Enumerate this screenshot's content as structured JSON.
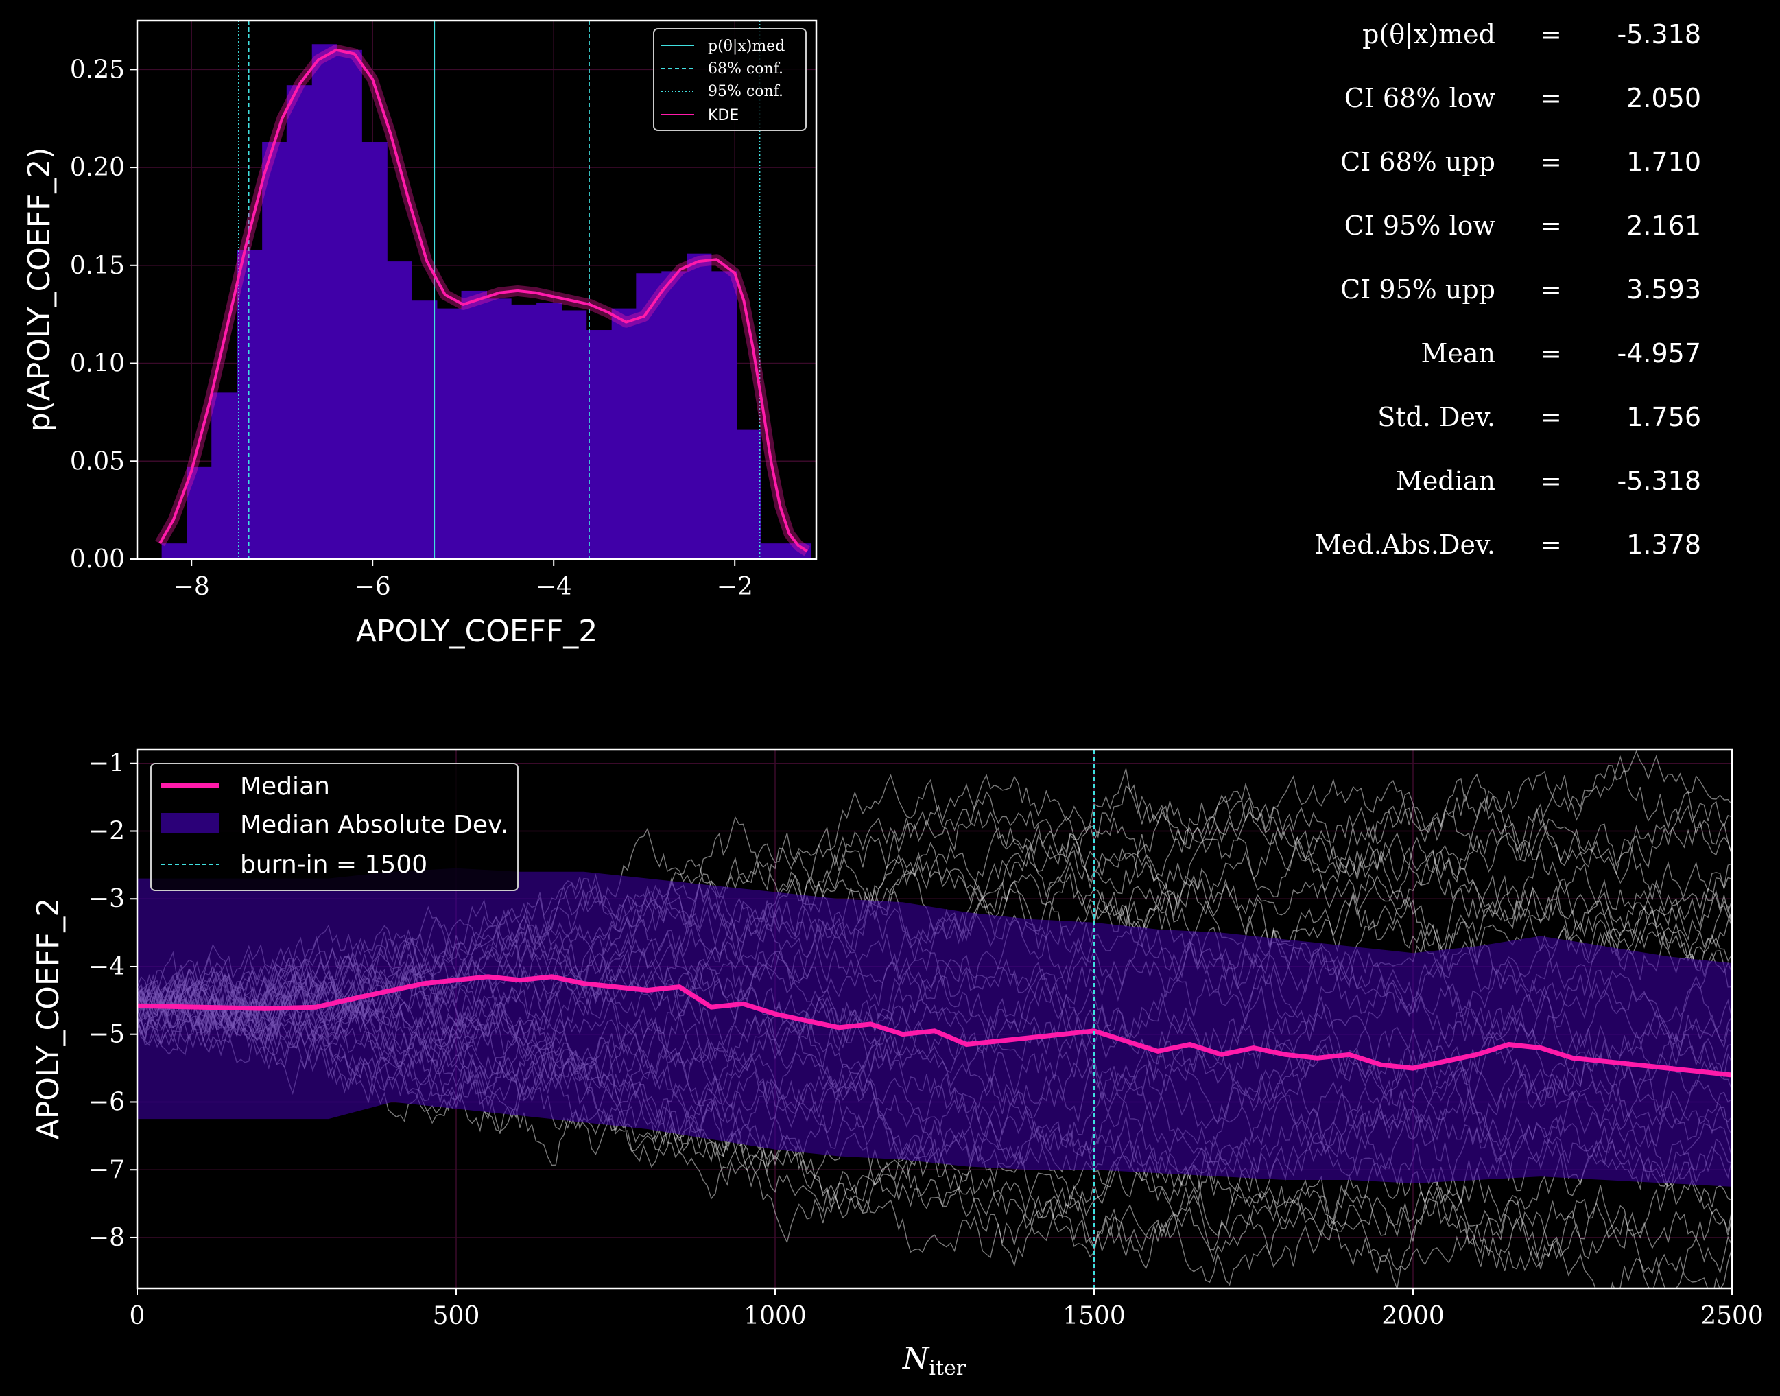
{
  "stats": [
    {
      "label": "p(θ|x)med",
      "eq": "=",
      "value": "-5.318"
    },
    {
      "label": "CI 68% low",
      "eq": "=",
      "value": "2.050"
    },
    {
      "label": "CI 68% upp",
      "eq": "=",
      "value": "1.710"
    },
    {
      "label": "CI 95% low",
      "eq": "=",
      "value": "2.161"
    },
    {
      "label": "CI 95% upp",
      "eq": "=",
      "value": "3.593"
    },
    {
      "label": "Mean",
      "eq": "=",
      "value": "-4.957"
    },
    {
      "label": "Std. Dev.",
      "eq": "=",
      "value": "1.756"
    },
    {
      "label": "Median",
      "eq": "=",
      "value": "-5.318"
    },
    {
      "label": "Med.Abs.Dev.",
      "eq": "=",
      "value": "1.378"
    }
  ],
  "chart_data": [
    {
      "type": "bar",
      "xlabel": "APOLY_COEFF_2",
      "ylabel": "p(APOLY_COEFF_2)",
      "xlim": [
        -8.6,
        -1.1
      ],
      "ylim": [
        0,
        0.275
      ],
      "xticks": [
        "−8",
        "−6",
        "−4",
        "−2"
      ],
      "xtick_values": [
        -8,
        -6,
        -4,
        -2
      ],
      "yticks": [
        "0.00",
        "0.05",
        "0.10",
        "0.15",
        "0.20",
        "0.25"
      ],
      "ytick_values": [
        0,
        0.05,
        0.1,
        0.15,
        0.2,
        0.25
      ],
      "histogram": {
        "bin_edges": [
          -8.33,
          -8.05,
          -7.78,
          -7.5,
          -7.22,
          -6.95,
          -6.67,
          -6.4,
          -6.12,
          -5.84,
          -5.57,
          -5.29,
          -5.02,
          -4.74,
          -4.47,
          -4.19,
          -3.91,
          -3.64,
          -3.36,
          -3.09,
          -2.81,
          -2.53,
          -2.26,
          -1.98,
          -1.71,
          -1.43,
          -1.16
        ],
        "values": [
          0.008,
          0.047,
          0.085,
          0.158,
          0.213,
          0.242,
          0.263,
          0.26,
          0.213,
          0.152,
          0.132,
          0.128,
          0.137,
          0.133,
          0.13,
          0.131,
          0.127,
          0.117,
          0.128,
          0.146,
          0.147,
          0.156,
          0.147,
          0.066,
          0.008,
          0.008
        ],
        "color": "#4000a8"
      },
      "kde": {
        "name": "KDE",
        "color": "#ff1aaa",
        "x": [
          -8.35,
          -8.2,
          -8.0,
          -7.8,
          -7.6,
          -7.4,
          -7.2,
          -7.0,
          -6.8,
          -6.6,
          -6.4,
          -6.2,
          -6.0,
          -5.8,
          -5.6,
          -5.4,
          -5.2,
          -5.0,
          -4.8,
          -4.6,
          -4.4,
          -4.2,
          -4.0,
          -3.8,
          -3.6,
          -3.4,
          -3.2,
          -3.0,
          -2.8,
          -2.6,
          -2.4,
          -2.2,
          -2.0,
          -1.9,
          -1.8,
          -1.7,
          -1.6,
          -1.5,
          -1.4,
          -1.3,
          -1.2
        ],
        "y": [
          0.008,
          0.02,
          0.045,
          0.08,
          0.12,
          0.16,
          0.196,
          0.225,
          0.243,
          0.255,
          0.26,
          0.258,
          0.245,
          0.217,
          0.183,
          0.152,
          0.135,
          0.13,
          0.133,
          0.136,
          0.137,
          0.136,
          0.134,
          0.132,
          0.13,
          0.126,
          0.121,
          0.124,
          0.137,
          0.148,
          0.152,
          0.153,
          0.146,
          0.132,
          0.108,
          0.08,
          0.05,
          0.027,
          0.013,
          0.007,
          0.004
        ]
      },
      "vlines": [
        {
          "name": "p(θ|x)med",
          "x": -5.318,
          "style": "solid",
          "color": "#40e0e0"
        },
        {
          "name": "68% conf.",
          "x": [
            -7.368,
            -3.608
          ],
          "style": "dashed",
          "color": "#40e0e0"
        },
        {
          "name": "95% conf.",
          "x": [
            -7.479,
            -1.725
          ],
          "style": "dotted",
          "color": "#40e0e0"
        }
      ],
      "legend": {
        "position": "upper right",
        "entries": [
          "p(θ|x)med",
          "68% conf.",
          "95% conf.",
          "KDE"
        ]
      }
    },
    {
      "type": "line",
      "xlabel": "N_iter",
      "ylabel": "APOLY_COEFF_2",
      "xlim": [
        0,
        2500
      ],
      "ylim": [
        -8.75,
        -0.8
      ],
      "xticks": [
        "0",
        "500",
        "1000",
        "1500",
        "2000",
        "2500"
      ],
      "xtick_values": [
        0,
        500,
        1000,
        1500,
        2000,
        2500
      ],
      "yticks": [
        "−1",
        "−2",
        "−3",
        "−4",
        "−5",
        "−6",
        "−7",
        "−8"
      ],
      "ytick_values": [
        -1,
        -2,
        -3,
        -4,
        -5,
        -6,
        -7,
        -8
      ],
      "series": [
        {
          "name": "Median",
          "color": "#ff1aaa",
          "x": [
            0,
            100,
            200,
            280,
            350,
            400,
            450,
            500,
            550,
            600,
            650,
            700,
            750,
            800,
            850,
            900,
            950,
            1000,
            1050,
            1100,
            1150,
            1200,
            1250,
            1300,
            1350,
            1400,
            1450,
            1500,
            1550,
            1600,
            1650,
            1700,
            1750,
            1800,
            1850,
            1900,
            1950,
            2000,
            2050,
            2100,
            2150,
            2200,
            2250,
            2300,
            2350,
            2400,
            2450,
            2500
          ],
          "y": [
            -4.58,
            -4.6,
            -4.62,
            -4.6,
            -4.45,
            -4.35,
            -4.25,
            -4.2,
            -4.15,
            -4.2,
            -4.15,
            -4.25,
            -4.3,
            -4.35,
            -4.3,
            -4.6,
            -4.55,
            -4.7,
            -4.8,
            -4.9,
            -4.85,
            -5.0,
            -4.95,
            -5.15,
            -5.1,
            -5.05,
            -5.0,
            -4.95,
            -5.1,
            -5.25,
            -5.15,
            -5.3,
            -5.2,
            -5.3,
            -5.35,
            -5.3,
            -5.45,
            -5.5,
            -5.4,
            -5.3,
            -5.15,
            -5.2,
            -5.35,
            -5.4,
            -5.45,
            -5.5,
            -5.55,
            -5.6
          ]
        },
        {
          "name": "Median Absolute Dev.",
          "color": "#3a00a0",
          "x": [
            0,
            100,
            200,
            300,
            400,
            500,
            600,
            700,
            800,
            900,
            1000,
            1100,
            1200,
            1300,
            1400,
            1500,
            1600,
            1700,
            1800,
            1900,
            2000,
            2100,
            2200,
            2300,
            2400,
            2500
          ],
          "upper": [
            -2.7,
            -2.7,
            -2.7,
            -2.7,
            -2.6,
            -2.55,
            -2.6,
            -2.6,
            -2.7,
            -2.8,
            -2.9,
            -3.0,
            -3.05,
            -3.2,
            -3.3,
            -3.35,
            -3.45,
            -3.5,
            -3.6,
            -3.7,
            -3.8,
            -3.7,
            -3.55,
            -3.7,
            -3.85,
            -3.95
          ],
          "lower": [
            -6.25,
            -6.25,
            -6.25,
            -6.25,
            -6.0,
            -6.1,
            -6.2,
            -6.3,
            -6.4,
            -6.55,
            -6.7,
            -6.8,
            -6.85,
            -6.95,
            -7.0,
            -7.0,
            -7.05,
            -7.1,
            -7.15,
            -7.15,
            -7.2,
            -7.15,
            -7.1,
            -7.15,
            -7.2,
            -7.25
          ]
        }
      ],
      "vlines": [
        {
          "name": "burn-in = 1500",
          "x": 1500,
          "style": "dashed",
          "color": "#40e0e0"
        }
      ],
      "legend": {
        "position": "upper left",
        "entries": [
          "Median",
          "Median Absolute Dev.",
          "burn-in = 1500"
        ]
      },
      "walkers": {
        "count": 30,
        "start": -4.58,
        "spread_lower": -8.3,
        "spread_upper": -1.4
      }
    }
  ]
}
